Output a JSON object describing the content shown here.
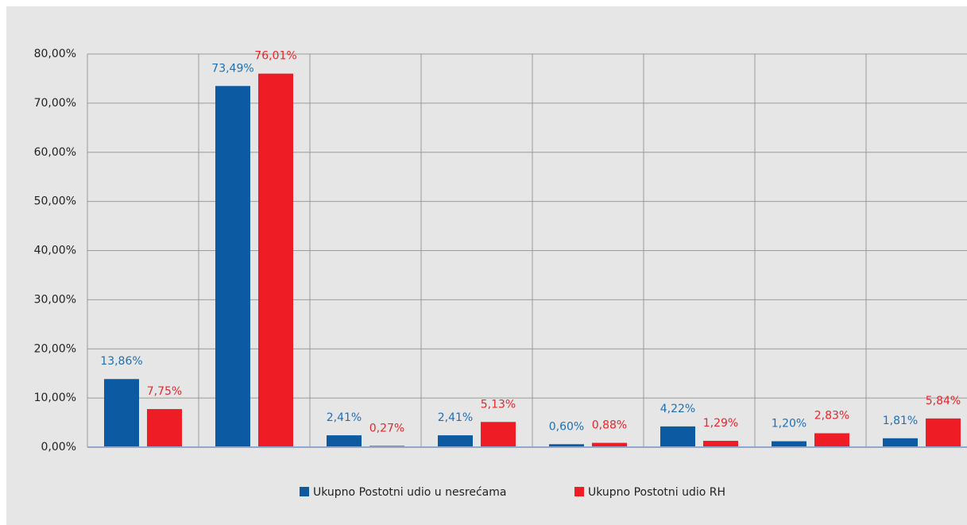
{
  "chart_data": {
    "type": "bar",
    "categories": [
      null,
      null,
      null,
      null,
      null,
      null,
      null,
      null
    ],
    "series": [
      {
        "name": "Ukupno Postotni udio u nesrećama",
        "color": "#0b5aa2",
        "label_color": "#1f6fb4",
        "values": [
          13.86,
          73.49,
          2.41,
          2.41,
          0.6,
          4.22,
          1.2,
          1.81
        ],
        "value_labels": [
          "13,86%",
          "73,49%",
          "2,41%",
          "2,41%",
          "0,60%",
          "4,22%",
          "1,20%",
          "1,81%"
        ]
      },
      {
        "name": "Ukupno Postotni udio RH",
        "color": "#ee1c25",
        "label_color": "#e8262c",
        "values": [
          7.75,
          76.01,
          0.27,
          5.13,
          0.88,
          1.29,
          2.83,
          5.84
        ],
        "value_labels": [
          "7,75%",
          "76,01%",
          "0,27%",
          "5,13%",
          "0,88%",
          "1,29%",
          "2,83%",
          "5,84%"
        ]
      }
    ],
    "ylim": [
      0,
      80
    ],
    "yticks": [
      {
        "value": 0,
        "label": "0,00%"
      },
      {
        "value": 10,
        "label": "10,00%"
      },
      {
        "value": 20,
        "label": "20,00%"
      },
      {
        "value": 30,
        "label": "30,00%"
      },
      {
        "value": 40,
        "label": "40,00%"
      },
      {
        "value": 50,
        "label": "50,00%"
      },
      {
        "value": 60,
        "label": "60,00%"
      },
      {
        "value": 70,
        "label": "70,00%"
      },
      {
        "value": 80,
        "label": "80,00%"
      }
    ],
    "grid": true,
    "legend": "bottom"
  }
}
